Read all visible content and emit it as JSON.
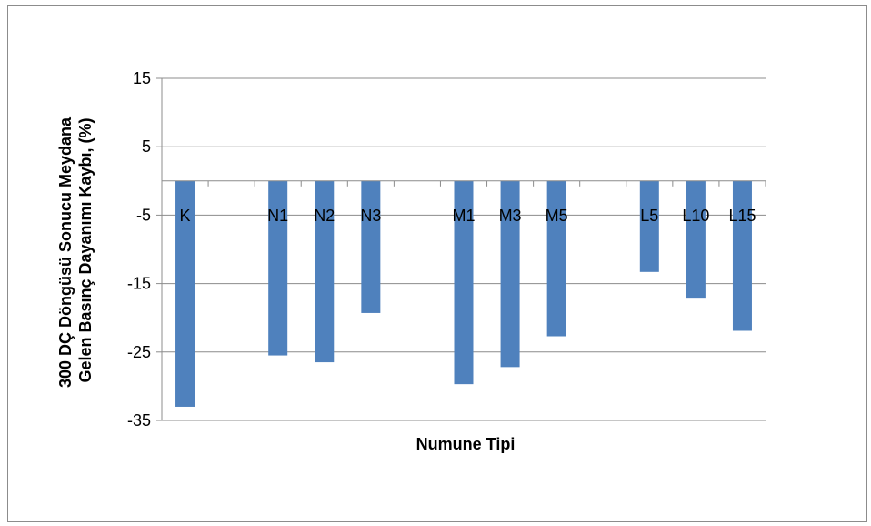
{
  "chart_data": {
    "type": "bar",
    "xlabel": "Numune Tipi",
    "ylabel_lines": [
      "300 DÇ Döngüsü Sonucu Meydana",
      "Gelen Basınç Dayanımı Kaybı, (%)"
    ],
    "ylim": [
      -35,
      15
    ],
    "yticks": [
      15,
      5,
      -5,
      -15,
      -25,
      -35
    ],
    "grid": true,
    "legend": "none",
    "bar_color": "#4f81bd",
    "categories": [
      "K",
      "",
      "N1",
      "N2",
      "N3",
      "",
      "M1",
      "M3",
      "M5",
      "",
      "L5",
      "L10",
      "L15"
    ],
    "values": [
      -33,
      null,
      -25.5,
      -26.5,
      -19.3,
      null,
      -29.7,
      -27.2,
      -22.7,
      null,
      -13.3,
      -17.2,
      -21.9
    ]
  }
}
